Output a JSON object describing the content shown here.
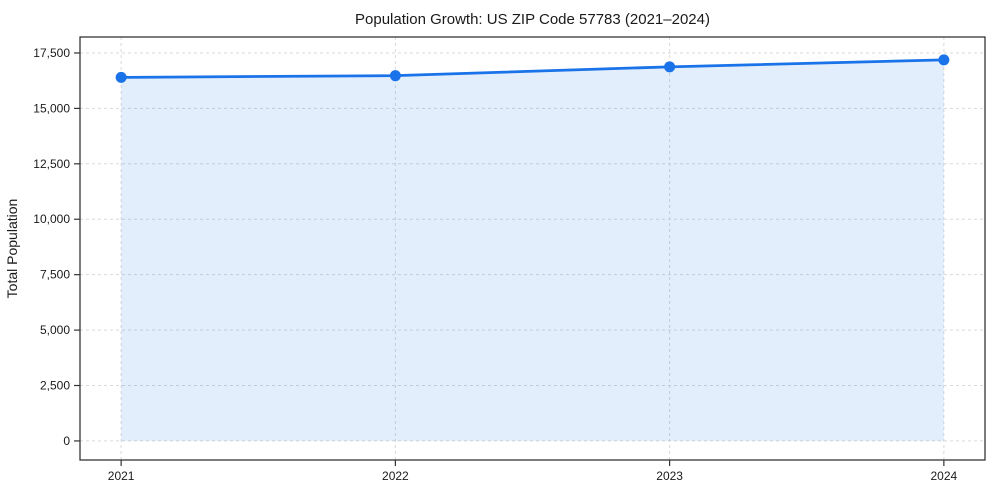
{
  "page": {
    "background_color": "#ffffff"
  },
  "chart_data": {
    "type": "line",
    "title": "Population Growth: US ZIP Code 57783 (2021–2024)",
    "xlabel": "",
    "ylabel": "Total Population",
    "x": [
      2021,
      2022,
      2023,
      2024
    ],
    "series": [
      {
        "name": "Total Population",
        "values": [
          16400,
          16475,
          16875,
          17190
        ]
      }
    ],
    "x_tick_labels": [
      "2021",
      "2022",
      "2023",
      "2024"
    ],
    "y_ticks": [
      0,
      2500,
      5000,
      7500,
      10000,
      12500,
      15000,
      17500
    ],
    "y_tick_labels": [
      "0",
      "2,500",
      "5,000",
      "7,500",
      "10,000",
      "12,500",
      "15,000",
      "17,500"
    ],
    "xlim": [
      2020.85,
      2024.15
    ],
    "ylim": [
      -860,
      18220
    ],
    "grid": true,
    "grid_style": "dashed",
    "legend": "none",
    "fill_baseline": 0,
    "colors": {
      "line": "#1a73e8",
      "marker": "#1a73e8",
      "fill": "#1a73e8",
      "fill_opacity": 0.12,
      "grid": "#d9d9d9",
      "frame": "#262626",
      "tick": "#333333",
      "text": "#1a1a1a"
    }
  }
}
